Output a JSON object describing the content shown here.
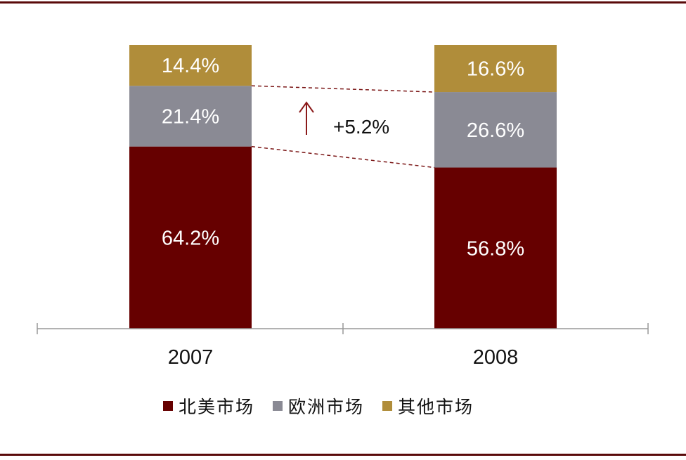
{
  "chart_data": {
    "type": "bar",
    "stacked": true,
    "percent": true,
    "categories": [
      "2007",
      "2008"
    ],
    "series": [
      {
        "name": "北美市场",
        "values": [
          64.2,
          56.8
        ],
        "labels": [
          "64.2%",
          "56.8%"
        ],
        "color": "#660000"
      },
      {
        "name": "欧洲市场",
        "values": [
          21.4,
          26.6
        ],
        "labels": [
          "21.4%",
          "26.6%"
        ],
        "color": "#8a8a94"
      },
      {
        "name": "其他市场",
        "values": [
          14.4,
          16.6
        ],
        "labels": [
          "14.4%",
          "16.6%"
        ],
        "color": "#b08d3a"
      }
    ],
    "ylim": [
      0,
      100
    ],
    "grid": false,
    "legend_position": "bottom",
    "annotation": {
      "text": "+5.2%",
      "arrow": "up",
      "color": "#8b1a1a"
    }
  }
}
